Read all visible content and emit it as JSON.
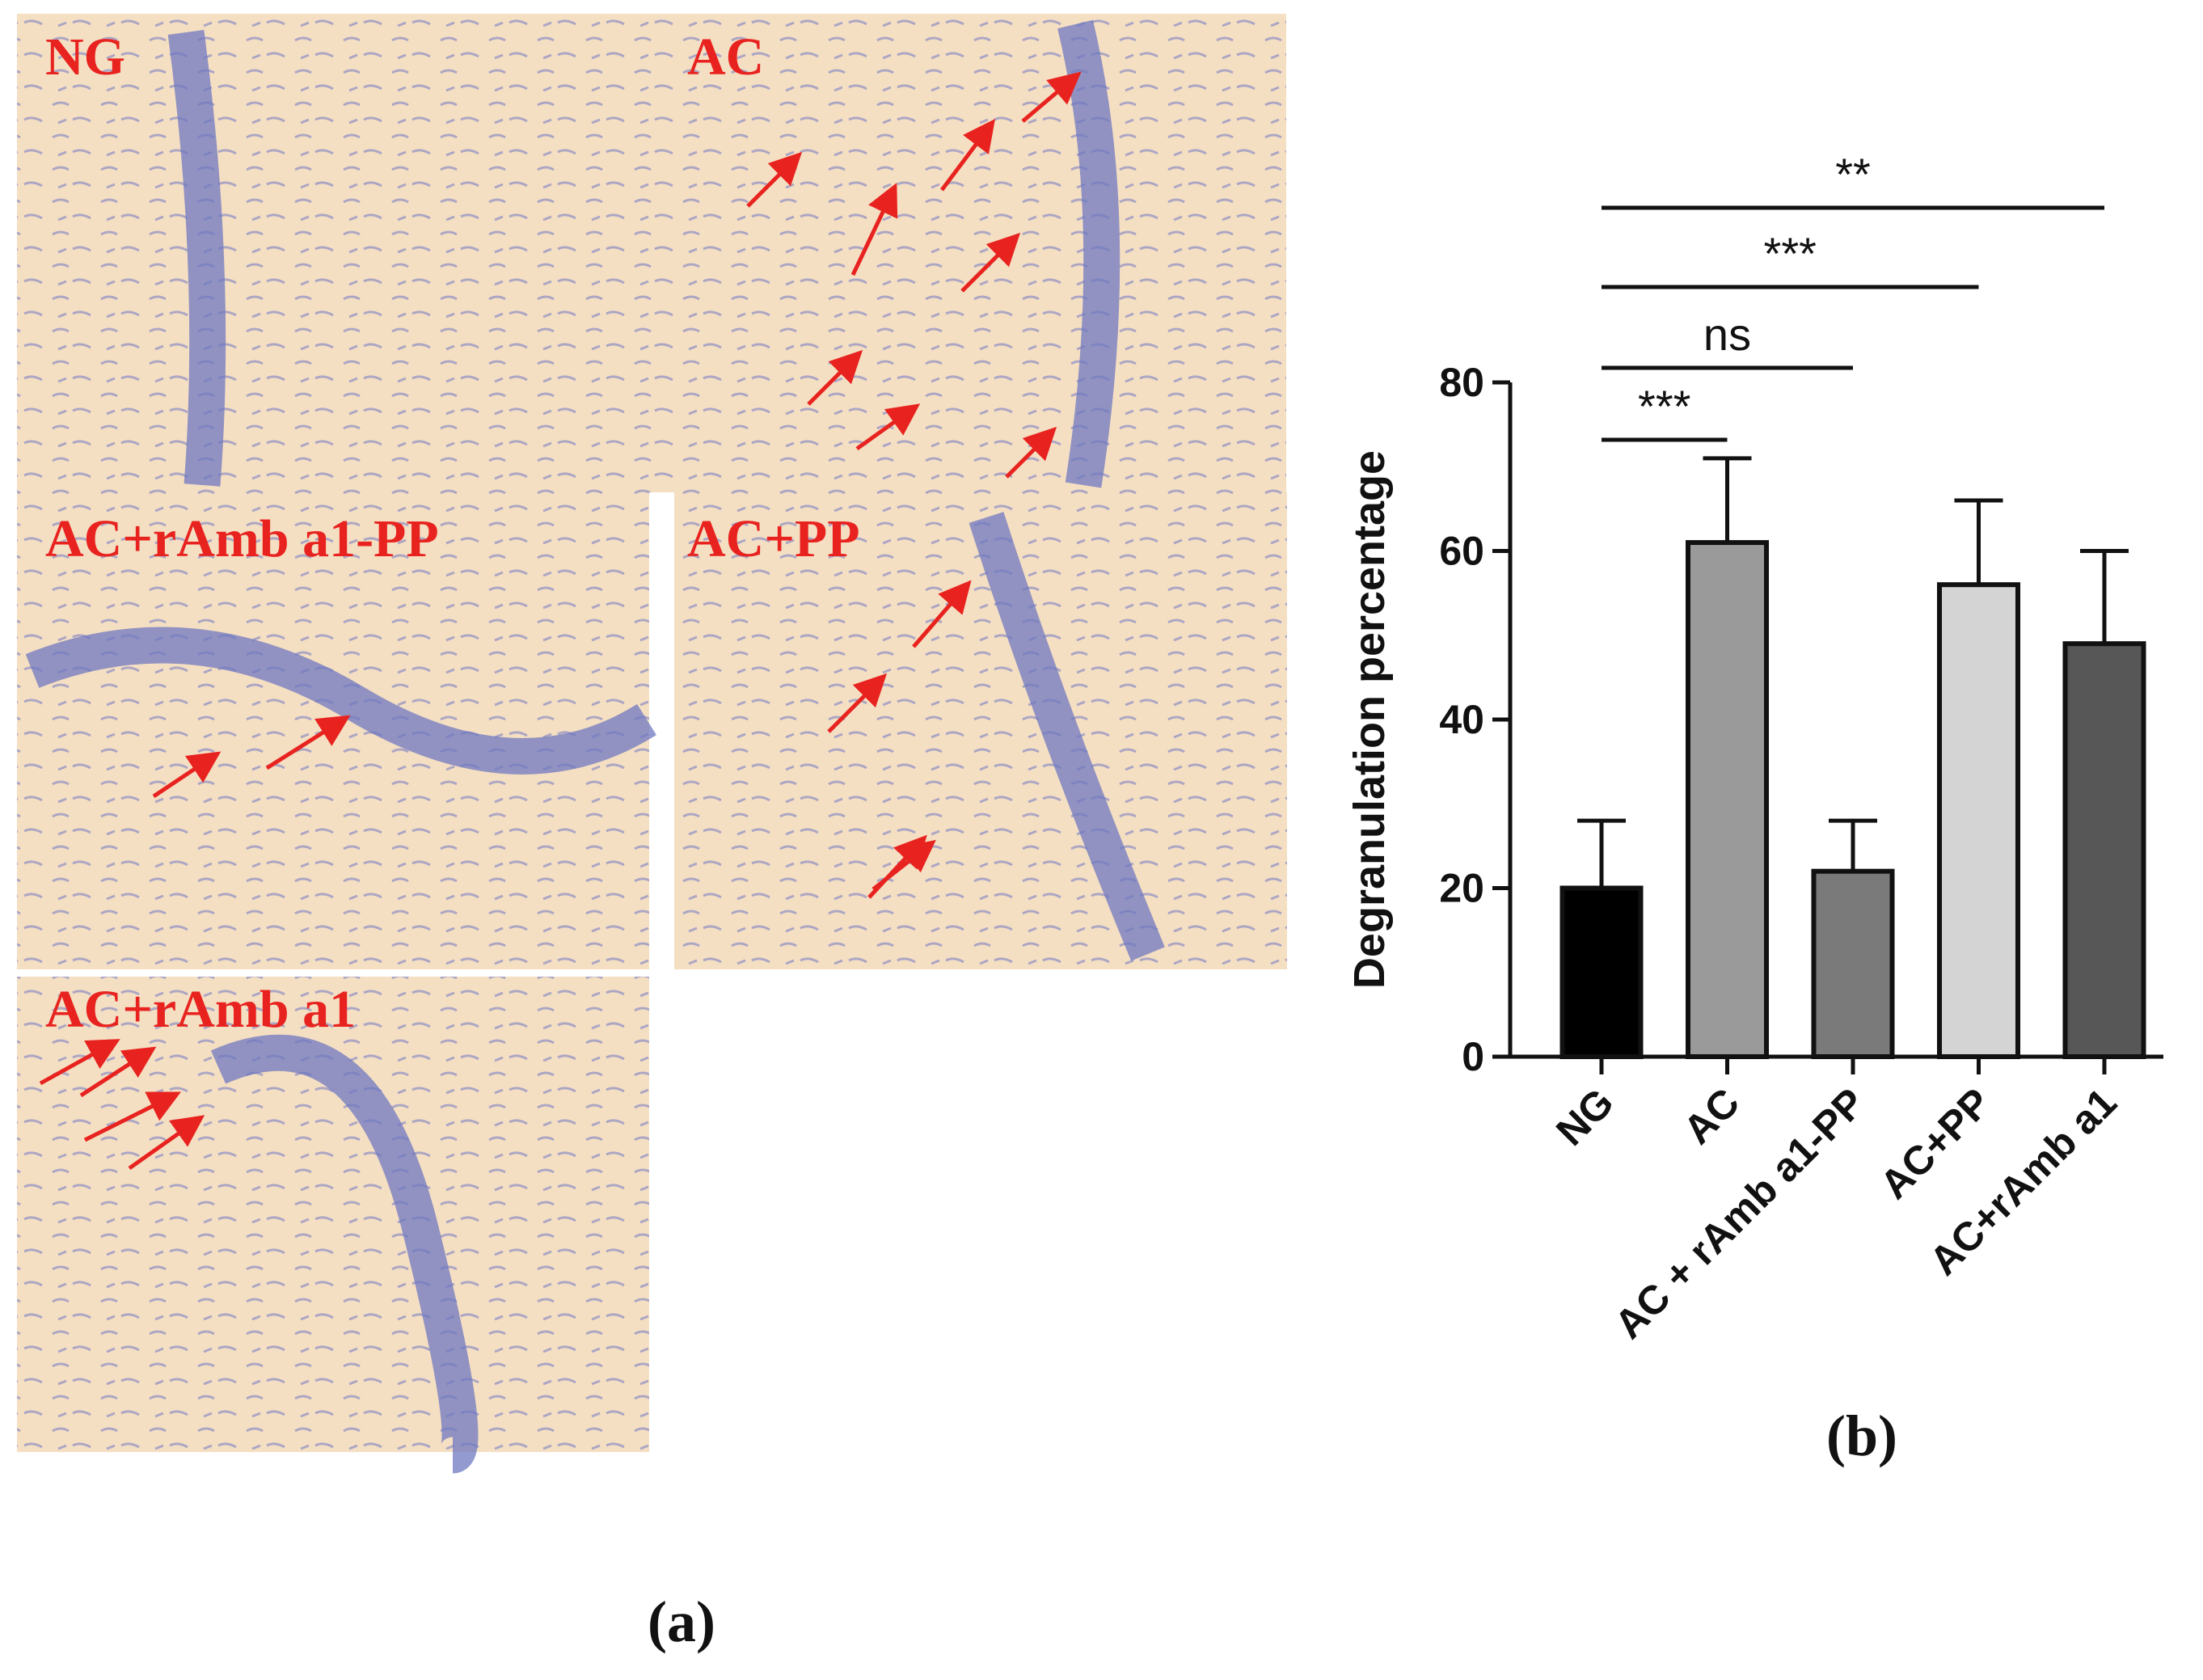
{
  "micrographs": [
    "NG",
    "AC",
    "AC+rAmb a1-PP",
    "AC+PP",
    "AC+rAmb a1"
  ],
  "panel_labels": [
    "(a)",
    "(b)"
  ],
  "chart_data": {
    "type": "bar",
    "ylabel": "Degranulation percentage",
    "categories": [
      "NG",
      "AC",
      "AC + rAmb a1-PP",
      "AC+PP",
      "AC+rAmb a1"
    ],
    "values": [
      20,
      61,
      22,
      56,
      49
    ],
    "errors": [
      8,
      10,
      6,
      10,
      11
    ],
    "colors": [
      "#000000",
      "#9a9a9a",
      "#7a7a7a",
      "#d4d4d4",
      "#575757"
    ],
    "ylim": [
      0,
      80
    ],
    "yticks": [
      0,
      20,
      40,
      60,
      80
    ],
    "significance": [
      {
        "from": "NG",
        "to": "AC",
        "label": "***"
      },
      {
        "from": "NG",
        "to": "AC + rAmb a1-PP",
        "label": "ns"
      },
      {
        "from": "NG",
        "to": "AC+PP",
        "label": "***"
      },
      {
        "from": "NG",
        "to": "AC+rAmb a1",
        "label": "**"
      }
    ]
  }
}
